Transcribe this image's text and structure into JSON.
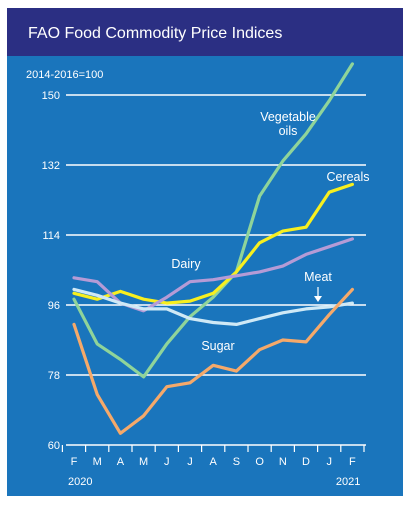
{
  "chart_data": {
    "type": "line",
    "title": "FAO Food Commodity Price Indices",
    "units_note": "2014-2016=100",
    "x": [
      "F",
      "M",
      "A",
      "M",
      "J",
      "J",
      "A",
      "S",
      "O",
      "N",
      "D",
      "J",
      "F"
    ],
    "year_labels": [
      "2020",
      "2021"
    ],
    "yticks": [
      60,
      78,
      96,
      114,
      132,
      150
    ],
    "ylim": [
      60,
      150
    ],
    "grid": true,
    "series": [
      {
        "name": "Vegetable oils",
        "color": "#8fd49a",
        "values": [
          97.5,
          86,
          82,
          77.5,
          86,
          93,
          98,
          104.5,
          124,
          133,
          140,
          148.5,
          158
        ]
      },
      {
        "name": "Cereals",
        "color": "#f7ef1f",
        "values": [
          99,
          97.5,
          99.5,
          97.5,
          96.5,
          97,
          99,
          104.5,
          112,
          115,
          116,
          125,
          127
        ]
      },
      {
        "name": "Dairy",
        "color": "#b59bd6",
        "values": [
          103,
          102,
          96.5,
          94.5,
          98,
          102,
          102.5,
          103.5,
          104.5,
          106,
          109,
          111,
          113
        ]
      },
      {
        "name": "Meat",
        "color": "#cfe9f6",
        "values": [
          100,
          98.5,
          96.5,
          95,
          95,
          92.5,
          91.5,
          91,
          92.5,
          94,
          95,
          95.5,
          96.5
        ]
      },
      {
        "name": "Sugar",
        "color": "#f5a96a",
        "values": [
          91,
          73,
          63,
          67.5,
          75,
          76,
          80.5,
          79,
          84.5,
          87,
          86.5,
          93.5,
          100
        ]
      }
    ],
    "series_labels": [
      {
        "series": "Vegetable oils",
        "lines": [
          "Vegetable",
          "oils"
        ]
      },
      {
        "series": "Cereals",
        "lines": [
          "Cereals"
        ]
      },
      {
        "series": "Dairy",
        "lines": [
          "Dairy"
        ]
      },
      {
        "series": "Meat",
        "lines": [
          "Meat"
        ]
      },
      {
        "series": "Sugar",
        "lines": [
          "Sugar"
        ]
      }
    ],
    "colors": {
      "background": "#1a75bc",
      "title_bar": "#2b2f83",
      "grid": "#ffffff"
    }
  }
}
